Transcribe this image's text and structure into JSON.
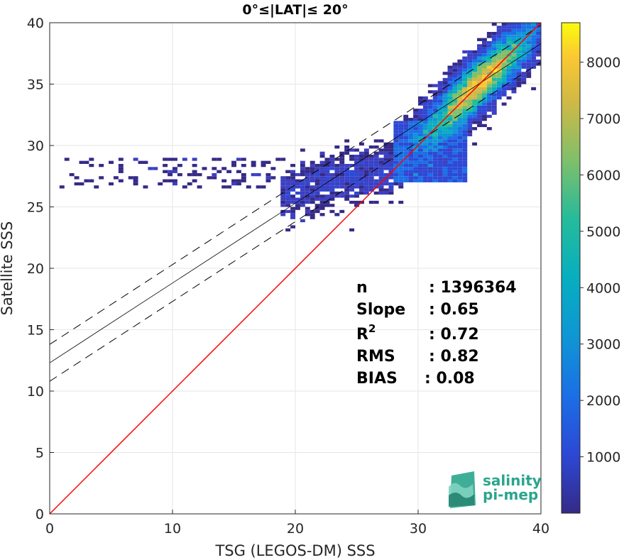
{
  "chart_data": {
    "type": "heatmap",
    "title": "0°≤|LAT|≤ 20°",
    "xlabel": "TSG (LEGOS-DM) SSS",
    "ylabel": "Satellite SSS",
    "xlim": [
      0,
      40
    ],
    "ylim": [
      0,
      40
    ],
    "x_ticks": [
      "0",
      "10",
      "20",
      "30",
      "40"
    ],
    "y_ticks": [
      "0",
      "5",
      "10",
      "15",
      "20",
      "25",
      "30",
      "35",
      "40"
    ],
    "grid": true,
    "colorbar": {
      "range": [
        0,
        8700
      ],
      "ticks": [
        "1000",
        "2000",
        "3000",
        "4000",
        "5000",
        "6000",
        "7000",
        "8000"
      ],
      "colormap": "parula"
    },
    "density_peak": {
      "x": 35.0,
      "y": 34.8,
      "count": 8600
    },
    "reference_line": {
      "name": "1:1",
      "color": "#ff0000",
      "slope": 1,
      "intercept": 0
    },
    "regression_line": {
      "slope": 0.65,
      "intercept": 12.3,
      "color": "#000000"
    },
    "confidence_offset": 1.5,
    "stats": [
      {
        "label": "n",
        "value": ": 1396364"
      },
      {
        "label": "Slope",
        "value": ": 0.65"
      },
      {
        "label": "R",
        "sup": "2",
        "value": ": 0.72"
      },
      {
        "label": "RMS",
        "value": ": 0.82"
      },
      {
        "label": "BIAS",
        "value": ": 0.08"
      }
    ]
  },
  "logo": {
    "line1": "salinity",
    "line2": "pi-mep",
    "color": "#2aa58c"
  }
}
